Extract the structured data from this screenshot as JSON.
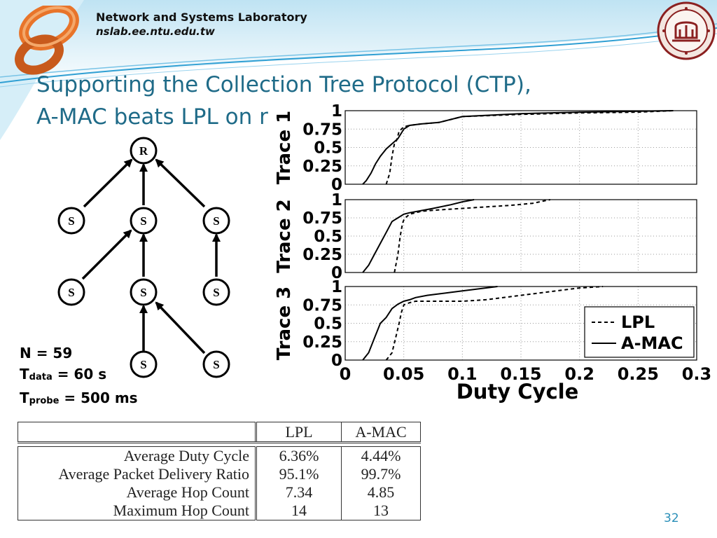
{
  "header": {
    "lab_name": "Network and Systems Laboratory",
    "lab_url": "nslab.ee.ntu.edu.tw",
    "logo_icon": "infinity-loop-logo",
    "seal_icon": "university-seal"
  },
  "title": {
    "line1": "Supporting the Collection Tree Protocol (CTP),",
    "line2": "A-MAC beats LPL on r"
  },
  "tree": {
    "root": "R",
    "sensor": "S"
  },
  "params": {
    "n": "N = 59",
    "tdata_prefix": "T",
    "tdata_sub": "data",
    "tdata_value": " = 60 s",
    "tprobe_prefix": "T",
    "tprobe_sub": "probe",
    "tprobe_value": " = 500 ms"
  },
  "chart_data": {
    "type": "line",
    "xlabel": "Duty Cycle",
    "xlim": [
      0,
      0.3
    ],
    "ylim": [
      0,
      1
    ],
    "x_ticks": [
      "0",
      "0.05",
      "0.1",
      "0.15",
      "0.2",
      "0.25",
      "0.3"
    ],
    "y_ticks": [
      "0",
      "0.25",
      "0.5",
      "0.75",
      "1"
    ],
    "legend": {
      "placement": "bottom-right",
      "lpl": "LPL",
      "amac": "A-MAC"
    },
    "panels": [
      {
        "name": "Trace 1",
        "series": [
          {
            "name": "LPL",
            "x": [
              0.035,
              0.038,
              0.04,
              0.042,
              0.044,
              0.046,
              0.05,
              0.055,
              0.065,
              0.08,
              0.1,
              0.15,
              0.2,
              0.25,
              0.28
            ],
            "y": [
              0,
              0.15,
              0.38,
              0.55,
              0.6,
              0.72,
              0.78,
              0.8,
              0.82,
              0.84,
              0.92,
              0.95,
              0.97,
              0.98,
              1.0
            ]
          },
          {
            "name": "A-MAC",
            "x": [
              0.015,
              0.018,
              0.022,
              0.026,
              0.03,
              0.035,
              0.04,
              0.045,
              0.05,
              0.055,
              0.065,
              0.08,
              0.1,
              0.15,
              0.2,
              0.28
            ],
            "y": [
              0,
              0.05,
              0.15,
              0.28,
              0.38,
              0.48,
              0.55,
              0.62,
              0.75,
              0.8,
              0.82,
              0.84,
              0.92,
              0.96,
              0.98,
              1.0
            ]
          }
        ]
      },
      {
        "name": "Trace 2",
        "series": [
          {
            "name": "LPL",
            "x": [
              0.042,
              0.045,
              0.047,
              0.049,
              0.05,
              0.052,
              0.055,
              0.065,
              0.08,
              0.1,
              0.12,
              0.14,
              0.16,
              0.175
            ],
            "y": [
              0,
              0.25,
              0.5,
              0.68,
              0.72,
              0.76,
              0.8,
              0.84,
              0.86,
              0.88,
              0.9,
              0.92,
              0.95,
              1.0
            ]
          },
          {
            "name": "A-MAC",
            "x": [
              0.015,
              0.02,
              0.025,
              0.03,
              0.035,
              0.04,
              0.045,
              0.05,
              0.055,
              0.065,
              0.075,
              0.09,
              0.1,
              0.11
            ],
            "y": [
              0,
              0.1,
              0.25,
              0.4,
              0.55,
              0.7,
              0.75,
              0.8,
              0.82,
              0.85,
              0.88,
              0.93,
              0.97,
              1.0
            ]
          }
        ]
      },
      {
        "name": "Trace 3",
        "series": [
          {
            "name": "LPL",
            "x": [
              0.035,
              0.04,
              0.043,
              0.046,
              0.048,
              0.05,
              0.055,
              0.06,
              0.08,
              0.1,
              0.12,
              0.14,
              0.16,
              0.18,
              0.2,
              0.22
            ],
            "y": [
              0,
              0.1,
              0.3,
              0.5,
              0.65,
              0.75,
              0.78,
              0.8,
              0.8,
              0.8,
              0.82,
              0.86,
              0.9,
              0.94,
              0.98,
              1.0
            ]
          },
          {
            "name": "A-MAC",
            "x": [
              0.015,
              0.02,
              0.025,
              0.03,
              0.035,
              0.04,
              0.045,
              0.05,
              0.055,
              0.06,
              0.07,
              0.08,
              0.09,
              0.1,
              0.115,
              0.13
            ],
            "y": [
              0,
              0.1,
              0.3,
              0.5,
              0.58,
              0.7,
              0.76,
              0.8,
              0.82,
              0.85,
              0.88,
              0.9,
              0.92,
              0.94,
              0.97,
              1.0
            ]
          }
        ]
      }
    ]
  },
  "table": {
    "headers": [
      "",
      "LPL",
      "A-MAC"
    ],
    "rows": [
      [
        "Average Duty Cycle",
        "6.36%",
        "4.44%"
      ],
      [
        "Average Packet Delivery Ratio",
        "95.1%",
        "99.7%"
      ],
      [
        "Average Hop Count",
        "7.34",
        "4.85"
      ],
      [
        "Maximum Hop Count",
        "14",
        "13"
      ]
    ]
  },
  "page_number": "32",
  "colors": {
    "title": "#1f6b88",
    "header_wave": "#3fa7d6",
    "page_number": "#2a8fb8",
    "logo_orange": "#e8742a",
    "seal_red": "#8b2020"
  }
}
